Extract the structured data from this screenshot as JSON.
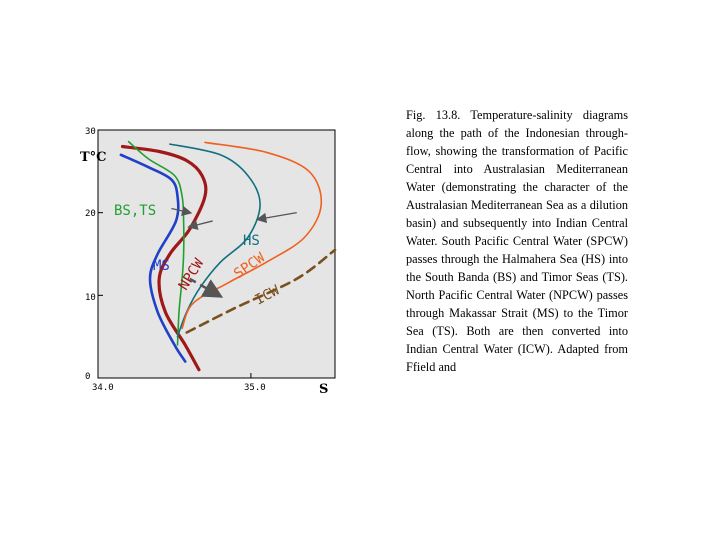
{
  "caption": "Fig. 13.8. Temperature-salinity diagrams along the path of the Indonesian through-flow, showing the transformation of Pacific Central into Australasian Mediterranean Water (demonstrating the character of the Australasian Mediterranean Sea as a dilution basin) and subsequently into Indian Central Water. South Pacific Central Water (SPCW) passes through the Halmahera Sea (HS) into the South Banda (BS) and Timor Seas (TS). North Pacific Central Water (NPCW) passes through Makassar Strait (MS) to the Timor Sea (TS). Both are then converted into Indian Central Water (ICW). Adapted from Ffield and",
  "chart_data": {
    "type": "line",
    "title": "",
    "xlabel": "S",
    "ylabel": "T°C",
    "xlim": [
      34.0,
      35.55
    ],
    "ylim": [
      0,
      30
    ],
    "xticks": [
      {
        "value": 34.0,
        "label": "34.0"
      },
      {
        "value": 35.0,
        "label": "35.0"
      }
    ],
    "yticks": [
      {
        "value": 0,
        "label": "0"
      },
      {
        "value": 10,
        "label": "10"
      },
      {
        "value": 20,
        "label": "20"
      },
      {
        "value": 30,
        "label": "30"
      }
    ],
    "series": [
      {
        "name": "NPCW",
        "label": "NPCW",
        "color": "#a01818",
        "points": [
          [
            34.16,
            28.0
          ],
          [
            34.4,
            27.4
          ],
          [
            34.58,
            26.3
          ],
          [
            34.68,
            24.5
          ],
          [
            34.7,
            22.0
          ],
          [
            34.6,
            18.0
          ],
          [
            34.47,
            15.0
          ],
          [
            34.4,
            12.0
          ],
          [
            34.44,
            8.0
          ],
          [
            34.57,
            4.0
          ],
          [
            34.66,
            1.0
          ]
        ]
      },
      {
        "name": "MS",
        "label": "MS",
        "color": "#2040c8",
        "points": [
          [
            34.15,
            27.0
          ],
          [
            34.33,
            25.5
          ],
          [
            34.48,
            24.0
          ],
          [
            34.52,
            22.0
          ],
          [
            34.51,
            19.0
          ],
          [
            34.39,
            15.0
          ],
          [
            34.34,
            12.0
          ],
          [
            34.39,
            8.0
          ],
          [
            34.5,
            4.0
          ],
          [
            34.57,
            2.0
          ]
        ]
      },
      {
        "name": "BS,TS",
        "label": "BS,TS",
        "color": "#20a030",
        "points": [
          [
            34.2,
            28.6
          ],
          [
            34.33,
            26.5
          ],
          [
            34.5,
            24.5
          ],
          [
            34.55,
            22.0
          ],
          [
            34.56,
            19.0
          ],
          [
            34.56,
            15.0
          ],
          [
            34.55,
            12.0
          ],
          [
            34.53,
            8.0
          ],
          [
            34.52,
            4.0
          ]
        ]
      },
      {
        "name": "HS",
        "label": "HS",
        "color": "#107080",
        "points": [
          [
            34.47,
            28.3
          ],
          [
            34.8,
            27.0
          ],
          [
            34.98,
            24.5
          ],
          [
            35.06,
            21.0
          ],
          [
            34.98,
            17.0
          ],
          [
            34.8,
            14.0
          ],
          [
            34.67,
            11.0
          ],
          [
            34.58,
            8.0
          ],
          [
            34.52,
            5.0
          ]
        ]
      },
      {
        "name": "SPCW",
        "label": "SPCW",
        "color": "#f06020",
        "points": [
          [
            34.7,
            28.5
          ],
          [
            35.1,
            27.3
          ],
          [
            35.38,
            25.0
          ],
          [
            35.46,
            21.0
          ],
          [
            35.35,
            17.0
          ],
          [
            35.1,
            14.0
          ],
          [
            34.85,
            11.5
          ],
          [
            34.62,
            9.0
          ],
          [
            34.55,
            6.0
          ]
        ]
      },
      {
        "name": "ICW",
        "label": "ICW",
        "color": "#7a5020",
        "dashed": true,
        "points": [
          [
            34.58,
            5.5
          ],
          [
            34.9,
            8.5
          ],
          [
            35.3,
            12.0
          ],
          [
            35.55,
            15.5
          ]
        ]
      }
    ],
    "labels": {
      "bsts": "BS,TS",
      "ms": "MS",
      "npcw": "NPCW",
      "hs": "HS",
      "spcw": "SPCW",
      "icw": "ICW"
    },
    "annotations": [
      {
        "type": "arrow",
        "from": [
          34.48,
          20.5
        ],
        "to": [
          34.6,
          20.0
        ],
        "color": "#555555"
      },
      {
        "type": "arrow",
        "from": [
          34.75,
          19.0
        ],
        "to": [
          34.6,
          18.3
        ],
        "color": "#555555"
      },
      {
        "type": "arrow",
        "from": [
          35.3,
          20.0
        ],
        "to": [
          35.05,
          19.2
        ],
        "color": "#555555"
      },
      {
        "type": "arrow",
        "from": [
          34.6,
          12.0
        ],
        "to": [
          34.79,
          10.0
        ],
        "color": "#555555",
        "dashed": true
      }
    ]
  }
}
